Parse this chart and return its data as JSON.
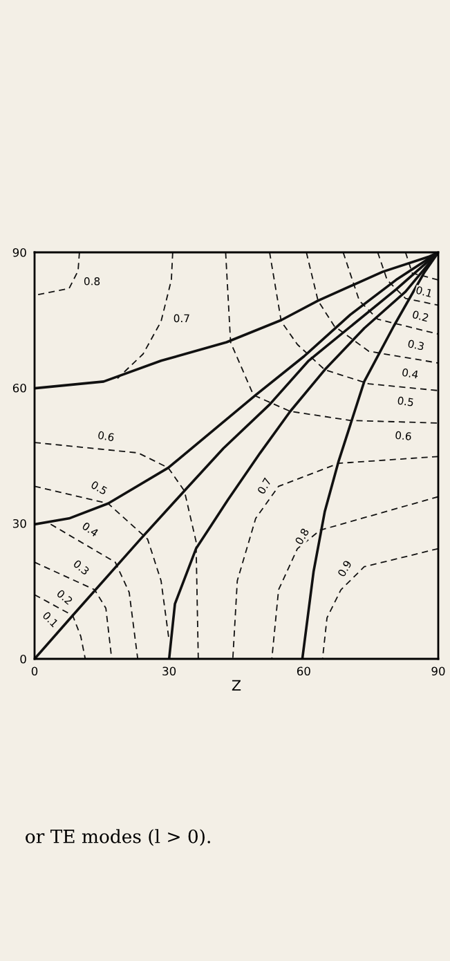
{
  "chart_data": {
    "type": "line",
    "xlabel": "Z",
    "xlim": [
      0,
      90
    ],
    "ylim": [
      0,
      90
    ],
    "xticks": [
      0,
      30,
      60,
      90
    ],
    "yticks": [
      0,
      30,
      60,
      90
    ],
    "grid": false,
    "marker": "none",
    "series": [
      {
        "color": "#111111",
        "line_style": "solid",
        "x": [
          0,
          15.4,
          28.2,
          42.8,
          55,
          63.2,
          77.6,
          87.8,
          90
        ],
        "values": [
          59.9,
          61.4,
          66,
          70.1,
          75,
          79.3,
          85.7,
          89,
          90
        ]
      },
      {
        "color": "#111111",
        "line_style": "solid",
        "x": [
          0,
          7.7,
          16.4,
          29.8,
          49.3,
          60.1,
          70.4,
          80.6,
          90
        ],
        "values": [
          29.8,
          31.1,
          34.4,
          42.3,
          58.4,
          67,
          76.2,
          83.9,
          90
        ]
      },
      {
        "color": "#111111",
        "line_style": "solid",
        "x": [
          0,
          8.5,
          23.6,
          33.4,
          42.1,
          52.4,
          61.1,
          80.6,
          90
        ],
        "values": [
          0,
          9.6,
          26.5,
          37.2,
          46.6,
          56.3,
          66,
          81.8,
          90
        ]
      },
      {
        "color": "#111111",
        "line_style": "solid",
        "x": [
          30,
          31.3,
          36,
          43.1,
          50.3,
          57,
          64.7,
          73.5,
          82.7,
          90
        ],
        "values": [
          0,
          12.2,
          24.4,
          35.2,
          45.6,
          54.8,
          64,
          73.2,
          81.3,
          90
        ]
      },
      {
        "color": "#111111",
        "line_style": "solid",
        "x": [
          59.7,
          62.2,
          64.7,
          67.8,
          73.5,
          80.1,
          86.8,
          90
        ],
        "values": [
          0,
          19.3,
          32.6,
          43.8,
          61.4,
          73.7,
          85.4,
          90
        ]
      },
      {
        "color": "#111111",
        "line_style": "dashed",
        "x": [
          10,
          9.7,
          7.7,
          0
        ],
        "values": [
          90,
          85.9,
          82,
          80.5
        ]
      },
      {
        "color": "#111111",
        "line_style": "dashed",
        "x": [
          30.8,
          30.5,
          28.2,
          24.2,
          18.5
        ],
        "values": [
          90,
          83.9,
          74.7,
          67.5,
          62.1
        ]
      },
      {
        "color": "#111111",
        "line_style": "dashed",
        "x": [
          0,
          8.5,
          10.3,
          11.3
        ],
        "values": [
          14.2,
          9.6,
          5.0,
          0
        ]
      },
      {
        "color": "#111111",
        "line_style": "dashed",
        "x": [
          0,
          13.4,
          15.9,
          17.2
        ],
        "values": [
          21.4,
          15.3,
          11.2,
          0
        ]
      },
      {
        "color": "#111111",
        "line_style": "dashed",
        "x": [
          3.6,
          18,
          21.1,
          23
        ],
        "values": [
          29.8,
          21.4,
          14.7,
          0
        ]
      },
      {
        "color": "#111111",
        "line_style": "dashed",
        "x": [
          0,
          16.4,
          25.2,
          28.2,
          30
        ],
        "values": [
          38.2,
          34.4,
          26.5,
          17.3,
          4
        ]
      },
      {
        "color": "#111111",
        "line_style": "dashed",
        "x": [
          0,
          23.1,
          29.8,
          33.4,
          36,
          36.5
        ],
        "values": [
          47.9,
          45.6,
          42.3,
          37.2,
          26,
          0
        ]
      },
      {
        "color": "#111111",
        "line_style": "dashed",
        "x": [
          42.6,
          43.7,
          48.8,
          57,
          70.4,
          90
        ],
        "values": [
          90,
          70.1,
          58.4,
          54.8,
          52.8,
          52.2
        ]
      },
      {
        "color": "#111111",
        "line_style": "dashed",
        "x": [
          52.4,
          55,
          58.6,
          64.7,
          74.5,
          90
        ],
        "values": [
          90,
          74.7,
          69.6,
          64,
          60.9,
          59.4
        ]
      },
      {
        "color": "#111111",
        "line_style": "dashed",
        "x": [
          60.6,
          63.2,
          66.8,
          74.5,
          90
        ],
        "values": [
          90,
          79.3,
          73.7,
          68.1,
          65.5
        ]
      },
      {
        "color": "#111111",
        "line_style": "dashed",
        "x": [
          68.8,
          72.4,
          76.5,
          90
        ],
        "values": [
          90,
          79.3,
          75.2,
          71.9
        ]
      },
      {
        "color": "#111111",
        "line_style": "dashed",
        "x": [
          76.5,
          78.6,
          82.7,
          90
        ],
        "values": [
          90,
          83.9,
          79.8,
          78.3
        ]
      },
      {
        "color": "#111111",
        "line_style": "dashed",
        "x": [
          82.7,
          84.2,
          90
        ],
        "values": [
          90,
          85.4,
          83.9
        ]
      },
      {
        "color": "#111111",
        "line_style": "dashed",
        "x": [
          90,
          67.8,
          54.4,
          49.3,
          45.2,
          44.2
        ],
        "values": [
          44.8,
          43.3,
          38.2,
          31.1,
          17.3,
          0
        ]
      },
      {
        "color": "#111111",
        "line_style": "dashed",
        "x": [
          90,
          63.7,
          58.6,
          54.4,
          52.9
        ],
        "values": [
          35.9,
          28.5,
          24.4,
          15.3,
          0
        ]
      },
      {
        "color": "#111111",
        "line_style": "dashed",
        "x": [
          90,
          73.5,
          68.3,
          65.2,
          64.2
        ],
        "values": [
          24.4,
          20.4,
          15.3,
          9.1,
          0
        ]
      }
    ],
    "annotations": [
      {
        "text": "0.8",
        "x": 12.8,
        "y": 83.4
      },
      {
        "text": "0.7",
        "x": 32.8,
        "y": 75.2
      },
      {
        "text": "0.6",
        "x": 15.9,
        "y": 49.1
      },
      {
        "text": "0.5",
        "x": 14.3,
        "y": 37.7
      },
      {
        "text": "0.4",
        "x": 12.3,
        "y": 28.5
      },
      {
        "text": "0.3",
        "x": 10.3,
        "y": 20.1
      },
      {
        "text": "0.2",
        "x": 6.6,
        "y": 13.5
      },
      {
        "text": "0.1",
        "x": 3.4,
        "y": 8.6
      },
      {
        "text": "0.1",
        "x": 86.8,
        "y": 81.1
      },
      {
        "text": "0.2",
        "x": 86,
        "y": 75.7
      },
      {
        "text": "0.3",
        "x": 85,
        "y": 69.3
      },
      {
        "text": "0.4",
        "x": 83.7,
        "y": 63
      },
      {
        "text": "0.5",
        "x": 82.7,
        "y": 56.8
      },
      {
        "text": "0.6",
        "x": 82.2,
        "y": 49.2
      },
      {
        "text": "0.7",
        "x": 51.4,
        "y": 38.2
      },
      {
        "text": "0.8",
        "x": 59.8,
        "y": 27
      },
      {
        "text": "0.9",
        "x": 69.3,
        "y": 19.9
      },
      "or TE modes (l > 0)."
    ]
  }
}
